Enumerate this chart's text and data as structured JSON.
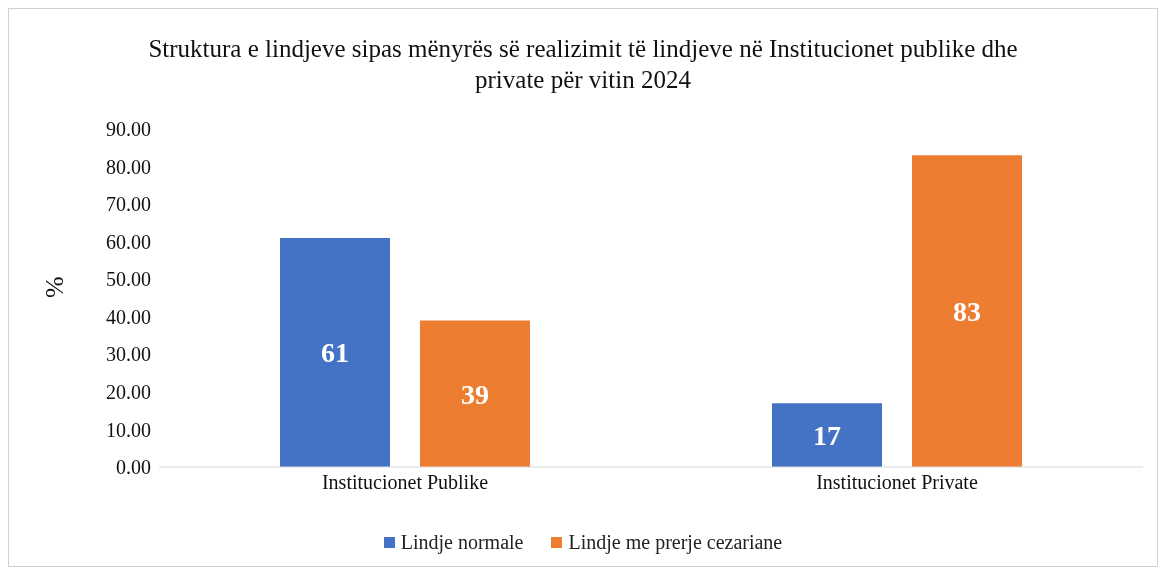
{
  "chart_data": {
    "type": "bar",
    "title": "Struktura e lindjeve sipas mënyrës së realizimit të lindjeve në Institucionet publike dhe private për vitin 2024",
    "ylabel": "%",
    "categories": [
      "Institucionet Publike",
      "Institucionet Private"
    ],
    "series": [
      {
        "name": "Lindje normale",
        "color": "#4472c4",
        "values": [
          61,
          17
        ]
      },
      {
        "name": "Lindje me prerje cezariane",
        "color": "#ed7d31",
        "values": [
          39,
          83
        ]
      }
    ],
    "ylim": [
      0,
      90
    ],
    "yticks": [
      {
        "value": 0,
        "label": "0.00"
      },
      {
        "value": 10,
        "label": "10.00"
      },
      {
        "value": 20,
        "label": "20.00"
      },
      {
        "value": 30,
        "label": "30.00"
      },
      {
        "value": 40,
        "label": "40.00"
      },
      {
        "value": 50,
        "label": "50.00"
      },
      {
        "value": 60,
        "label": "60.00"
      },
      {
        "value": 70,
        "label": "70.00"
      },
      {
        "value": 80,
        "label": "80.00"
      },
      {
        "value": 90,
        "label": "90.00"
      }
    ],
    "grid": false,
    "legend": "bottom",
    "data_labels": true
  }
}
